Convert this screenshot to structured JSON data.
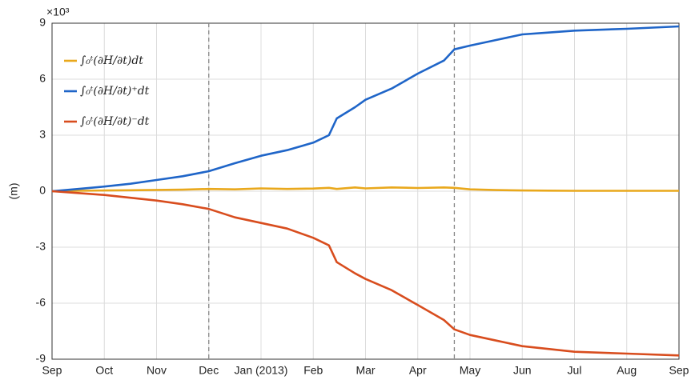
{
  "chart_data": {
    "type": "line",
    "y_label": "(m)",
    "y_multiplier": "×10³",
    "xlim": [
      0,
      12
    ],
    "xticks": [
      {
        "value": 0,
        "label": "Sep"
      },
      {
        "value": 1,
        "label": "Oct"
      },
      {
        "value": 2,
        "label": "Nov"
      },
      {
        "value": 3,
        "label": "Dec"
      },
      {
        "value": 4,
        "label": "Jan (2013)"
      },
      {
        "value": 5,
        "label": "Feb"
      },
      {
        "value": 6,
        "label": "Mar"
      },
      {
        "value": 7,
        "label": "Apr"
      },
      {
        "value": 8,
        "label": "May"
      },
      {
        "value": 9,
        "label": "Jun"
      },
      {
        "value": 10,
        "label": "Jul"
      },
      {
        "value": 11,
        "label": "Aug"
      },
      {
        "value": 12,
        "label": "Sep"
      }
    ],
    "ylim": [
      -9,
      9
    ],
    "yticks": [
      -9,
      -6,
      -3,
      0,
      3,
      6,
      9
    ],
    "grid": true,
    "vlines": [
      3,
      7.7
    ],
    "legend": "upper-left",
    "x": [
      0,
      0.5,
      1,
      1.5,
      2,
      2.5,
      3,
      3.5,
      4,
      4.5,
      5,
      5.3,
      5.45,
      5.8,
      6,
      6.5,
      7,
      7.5,
      7.7,
      8,
      8.5,
      9,
      9.5,
      10,
      11,
      12
    ],
    "series": [
      {
        "name": "∫₀ᵗ(∂H/∂t)dt",
        "color": "#e9a81c",
        "values": [
          0,
          0.02,
          0.04,
          0.05,
          0.07,
          0.08,
          0.12,
          0.1,
          0.15,
          0.12,
          0.14,
          0.18,
          0.12,
          0.2,
          0.15,
          0.2,
          0.17,
          0.2,
          0.18,
          0.1,
          0.06,
          0.04,
          0.03,
          0.02,
          0.02,
          0.02
        ]
      },
      {
        "name": "∫₀ᵗ(∂H/∂t)⁺dt",
        "color": "#1f65c8",
        "values": [
          0,
          0.12,
          0.25,
          0.4,
          0.6,
          0.8,
          1.07,
          1.5,
          1.9,
          2.2,
          2.6,
          3.0,
          3.9,
          4.5,
          4.9,
          5.5,
          6.3,
          7.0,
          7.6,
          7.8,
          8.1,
          8.4,
          8.5,
          8.6,
          8.7,
          8.83
        ]
      },
      {
        "name": "∫₀ᵗ(∂H/∂t)⁻dt",
        "color": "#d84d1e",
        "values": [
          0,
          -0.1,
          -0.2,
          -0.35,
          -0.5,
          -0.7,
          -0.95,
          -1.4,
          -1.7,
          -2.0,
          -2.5,
          -2.9,
          -3.8,
          -4.4,
          -4.7,
          -5.3,
          -6.1,
          -6.9,
          -7.4,
          -7.7,
          -8.0,
          -8.3,
          -8.45,
          -8.6,
          -8.7,
          -8.8
        ]
      }
    ]
  }
}
